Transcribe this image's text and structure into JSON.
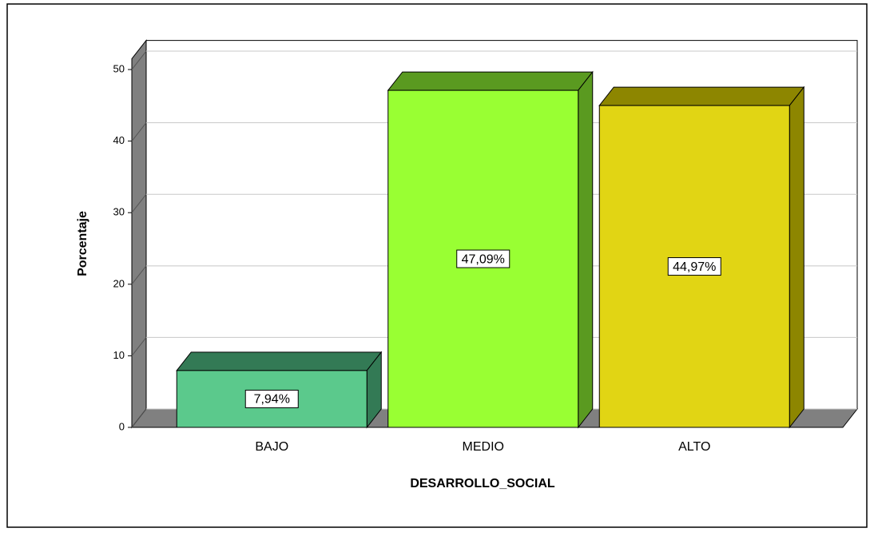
{
  "chart_data": {
    "type": "bar3d",
    "x_label": "DESARROLLO_SOCIAL",
    "y_label": "Porcentaje",
    "categories": [
      "BAJO",
      "MEDIO",
      "ALTO"
    ],
    "values": [
      7.94,
      47.09,
      44.97
    ],
    "value_labels": [
      "7,94%",
      "47,09%",
      "44,97%"
    ],
    "colors": [
      "#5bc98c",
      "#99ff33",
      "#e1d514"
    ],
    "side_colors": [
      "#337a55",
      "#5a9a20",
      "#8d8600"
    ],
    "ylim": [
      0,
      51.5
    ],
    "yticks": [
      0,
      10,
      20,
      30,
      40,
      50
    ],
    "grid": true
  }
}
